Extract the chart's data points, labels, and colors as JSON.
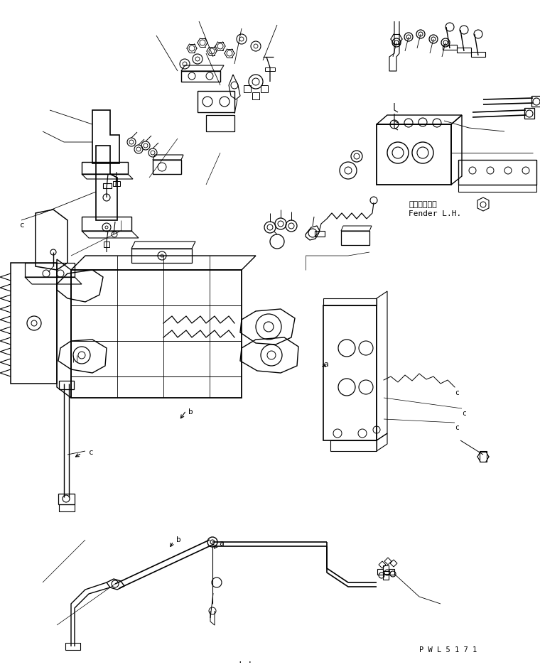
{
  "background_color": "#ffffff",
  "figure_width": 7.6,
  "figure_height": 9.39,
  "dpi": 100,
  "line_color": "#000000",
  "text_fender_jp": "フェンダ　左",
  "text_fender_en": "Fender L.H.",
  "text_code": "P W L 5 1 7 1",
  "label_a1": "a",
  "label_a2": "a",
  "label_b1": "b",
  "label_b2": "b",
  "label_c1": "c",
  "label_c2": "c",
  "label_c3": "c",
  "label_c4": "c"
}
